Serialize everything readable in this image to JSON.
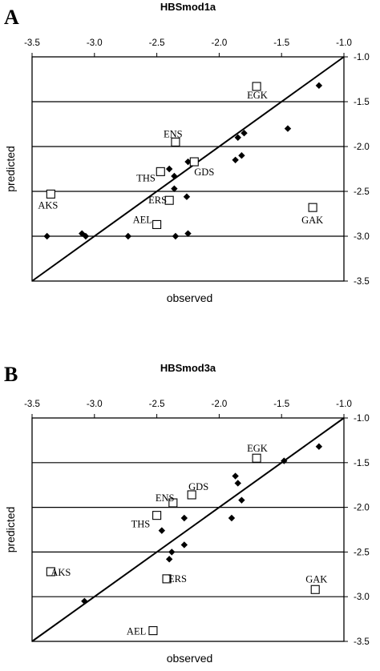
{
  "chart_data": [
    {
      "panel": "A",
      "type": "scatter",
      "title": "HBSmod1a",
      "xlabel": "observed",
      "ylabel": "predicted",
      "xlim": [
        -3.5,
        -1.0
      ],
      "ylim": [
        -3.5,
        -1.0
      ],
      "x_ticks": [
        "-3.5",
        "-3.0",
        "-2.5",
        "-2.0",
        "-1.5",
        "-1.0"
      ],
      "y_ticks": [
        "-1.0",
        "-1.5",
        "-2.0",
        "-2.5",
        "-3.0",
        "-3.5"
      ],
      "gridlines_y": [
        -1.5,
        -2.0,
        -2.5,
        -3.0
      ],
      "diagonal": true,
      "series": [
        {
          "marker": "filled-diamond",
          "points": [
            {
              "x": -1.2,
              "y": -1.32
            },
            {
              "x": -1.45,
              "y": -1.8
            },
            {
              "x": -1.8,
              "y": -1.85
            },
            {
              "x": -1.85,
              "y": -1.9
            },
            {
              "x": -1.82,
              "y": -2.1
            },
            {
              "x": -1.87,
              "y": -2.15
            },
            {
              "x": -2.25,
              "y": -2.17
            },
            {
              "x": -2.4,
              "y": -2.25
            },
            {
              "x": -2.36,
              "y": -2.33
            },
            {
              "x": -2.36,
              "y": -2.47
            },
            {
              "x": -2.26,
              "y": -2.56
            },
            {
              "x": -3.38,
              "y": -3.0
            },
            {
              "x": -3.1,
              "y": -2.97
            },
            {
              "x": -3.07,
              "y": -3.0
            },
            {
              "x": -2.73,
              "y": -3.0
            },
            {
              "x": -2.35,
              "y": -3.0
            },
            {
              "x": -2.25,
              "y": -2.97
            }
          ]
        },
        {
          "marker": "open-square",
          "points": [
            {
              "label": "EGK",
              "x": -1.7,
              "y": -1.33
            },
            {
              "label": "ENS",
              "x": -2.35,
              "y": -1.95
            },
            {
              "label": "GDS",
              "x": -2.2,
              "y": -2.17
            },
            {
              "label": "THS",
              "x": -2.47,
              "y": -2.28
            },
            {
              "label": "ERS",
              "x": -2.4,
              "y": -2.6
            },
            {
              "label": "AEL",
              "x": -2.5,
              "y": -2.87
            },
            {
              "label": "AKS",
              "x": -3.35,
              "y": -2.53
            },
            {
              "label": "GAK",
              "x": -1.25,
              "y": -2.68
            }
          ]
        }
      ]
    },
    {
      "panel": "B",
      "type": "scatter",
      "title": "HBSmod3a",
      "xlabel": "observed",
      "ylabel": "predicted",
      "xlim": [
        -3.5,
        -1.0
      ],
      "ylim": [
        -3.5,
        -1.0
      ],
      "x_ticks": [
        "-3.5",
        "-3.0",
        "-2.5",
        "-2.0",
        "-1.5",
        "-1.0"
      ],
      "y_ticks": [
        "-1.0",
        "-1.5",
        "-2.0",
        "-2.5",
        "-3.0",
        "-3.5"
      ],
      "gridlines_y": [
        -1.5,
        -2.0,
        -2.5,
        -3.0
      ],
      "diagonal": true,
      "series": [
        {
          "marker": "filled-diamond",
          "points": [
            {
              "x": -1.2,
              "y": -1.32
            },
            {
              "x": -1.48,
              "y": -1.48
            },
            {
              "x": -1.87,
              "y": -1.65
            },
            {
              "x": -1.85,
              "y": -1.73
            },
            {
              "x": -1.82,
              "y": -1.92
            },
            {
              "x": -1.9,
              "y": -2.12
            },
            {
              "x": -2.28,
              "y": -2.12
            },
            {
              "x": -2.46,
              "y": -2.26
            },
            {
              "x": -2.28,
              "y": -2.42
            },
            {
              "x": -2.38,
              "y": -2.5
            },
            {
              "x": -2.4,
              "y": -2.58
            },
            {
              "x": -3.08,
              "y": -3.05
            }
          ]
        },
        {
          "marker": "open-square",
          "points": [
            {
              "label": "EGK",
              "x": -1.7,
              "y": -1.45
            },
            {
              "label": "GDS",
              "x": -2.22,
              "y": -1.86
            },
            {
              "label": "ENS",
              "x": -2.37,
              "y": -1.95
            },
            {
              "label": "THS",
              "x": -2.5,
              "y": -2.09
            },
            {
              "label": "AKS",
              "x": -3.35,
              "y": -2.72
            },
            {
              "label": "ERS",
              "x": -2.42,
              "y": -2.8
            },
            {
              "label": "GAK",
              "x": -1.23,
              "y": -2.92
            },
            {
              "label": "AEL",
              "x": -2.53,
              "y": -3.38
            }
          ]
        }
      ]
    }
  ]
}
